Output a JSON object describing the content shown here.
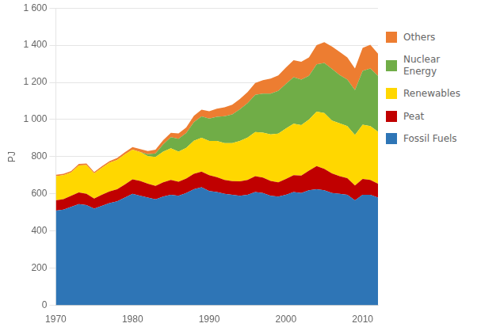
{
  "chart_data": {
    "type": "area",
    "stacked": true,
    "ylabel": "PJ",
    "x": [
      1970,
      1971,
      1972,
      1973,
      1974,
      1975,
      1976,
      1977,
      1978,
      1979,
      1980,
      1981,
      1982,
      1983,
      1984,
      1985,
      1986,
      1987,
      1988,
      1989,
      1990,
      1991,
      1992,
      1993,
      1994,
      1995,
      1996,
      1997,
      1998,
      1999,
      2000,
      2001,
      2002,
      2003,
      2004,
      2005,
      2006,
      2007,
      2008,
      2009,
      2010,
      2011,
      2012
    ],
    "series": [
      {
        "name": "Fossil Fuels",
        "color": "#2E75B6",
        "values": [
          510,
          515,
          530,
          545,
          540,
          520,
          535,
          550,
          560,
          580,
          600,
          590,
          580,
          570,
          585,
          595,
          590,
          605,
          625,
          635,
          615,
          610,
          600,
          595,
          590,
          595,
          610,
          605,
          590,
          585,
          595,
          610,
          605,
          620,
          625,
          620,
          605,
          600,
          595,
          565,
          595,
          595,
          580
        ]
      },
      {
        "name": "Peat",
        "color": "#C00000",
        "values": [
          55,
          57,
          60,
          63,
          60,
          55,
          60,
          63,
          65,
          70,
          78,
          80,
          75,
          73,
          77,
          80,
          75,
          77,
          83,
          85,
          85,
          80,
          75,
          73,
          77,
          80,
          85,
          83,
          80,
          77,
          85,
          90,
          93,
          105,
          125,
          115,
          105,
          95,
          90,
          80,
          85,
          80,
          75
        ]
      },
      {
        "name": "Renewables",
        "color": "#FFD700",
        "values": [
          130,
          128,
          125,
          145,
          155,
          135,
          145,
          155,
          158,
          162,
          160,
          155,
          148,
          155,
          165,
          170,
          162,
          165,
          178,
          182,
          185,
          195,
          198,
          205,
          218,
          228,
          238,
          242,
          250,
          262,
          272,
          278,
          272,
          275,
          292,
          300,
          285,
          285,
          280,
          272,
          292,
          290,
          280
        ]
      },
      {
        "name": "Nuclear\nEnergy",
        "color": "#70AD47",
        "values": [
          0,
          0,
          0,
          0,
          0,
          0,
          0,
          0,
          0,
          0,
          0,
          0,
          10,
          20,
          40,
          60,
          70,
          80,
          100,
          115,
          120,
          130,
          145,
          155,
          170,
          185,
          200,
          210,
          220,
          230,
          240,
          250,
          245,
          235,
          255,
          270,
          278,
          260,
          250,
          242,
          290,
          310,
          300
        ]
      },
      {
        "name": "Others",
        "color": "#ED7D31",
        "values": [
          8,
          8,
          8,
          8,
          8,
          8,
          8,
          8,
          10,
          12,
          14,
          16,
          18,
          20,
          22,
          24,
          28,
          30,
          34,
          36,
          40,
          44,
          48,
          52,
          56,
          60,
          64,
          72,
          80,
          84,
          88,
          92,
          96,
          100,
          104,
          112,
          120,
          124,
          120,
          116,
          124,
          128,
          120
        ]
      }
    ],
    "xlim": [
      1970,
      2012
    ],
    "xticks": [
      1970,
      1980,
      1990,
      2000,
      2010
    ],
    "ylim": [
      0,
      1600
    ],
    "yticks": [
      0,
      200,
      400,
      600,
      800,
      {
        "value": 1000,
        "label": "1 000"
      },
      {
        "value": 1200,
        "label": "1 200"
      },
      {
        "value": 1400,
        "label": "1 400"
      },
      {
        "value": 1600,
        "label": "1 600"
      }
    ],
    "grid": "y",
    "legend": "right"
  }
}
